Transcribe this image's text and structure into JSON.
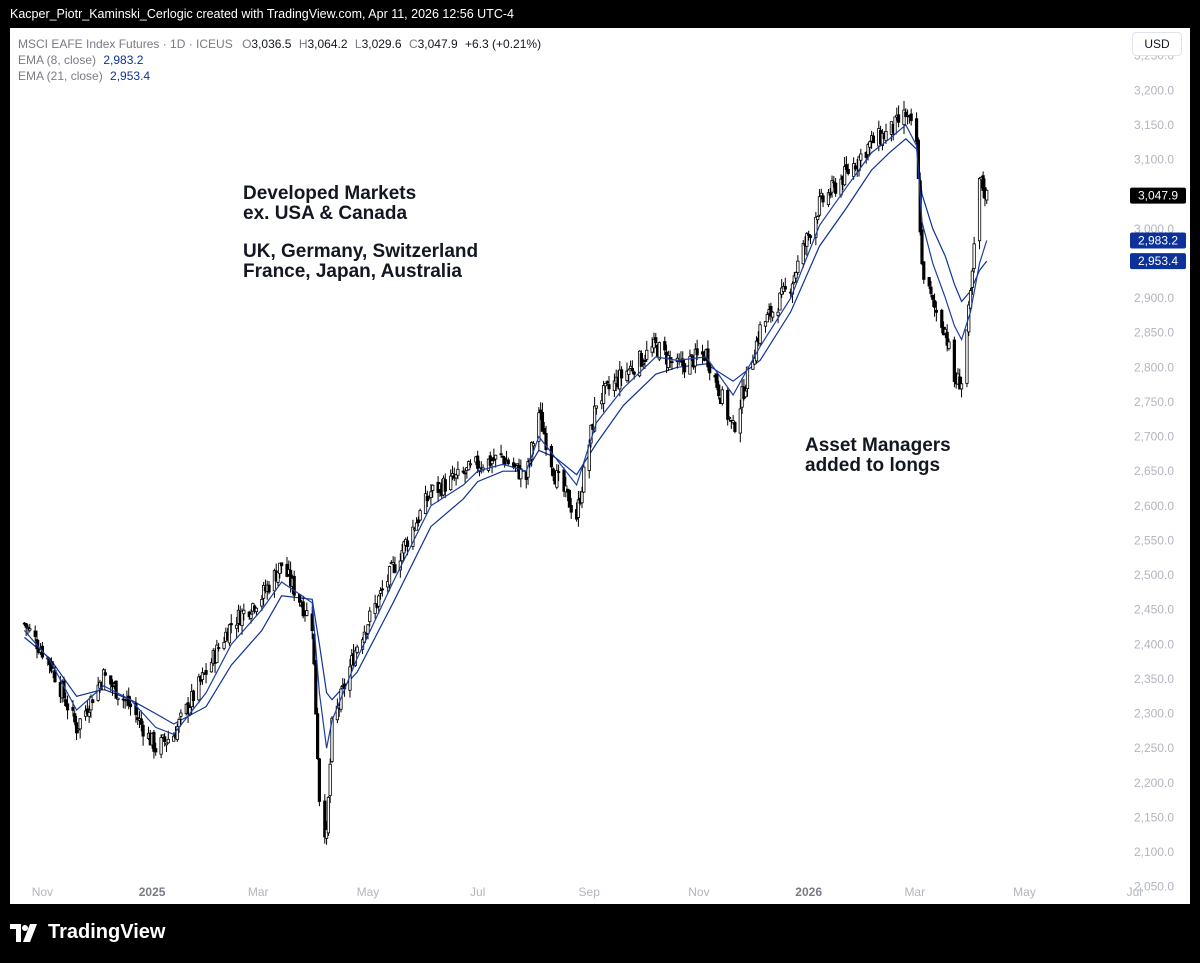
{
  "header": {
    "credit": "Kacper_Piotr_Kaminski_Cerlogic created with TradingView.com, Apr 11, 2026 12:56 UTC-4"
  },
  "legend": {
    "symbol": "MSCI EAFE Index Futures · 1D · ICEUS",
    "o_label": "O",
    "o_value": "3,036.5",
    "h_label": "H",
    "h_value": "3,064.2",
    "l_label": "L",
    "l_value": "3,029.6",
    "c_label": "C",
    "c_value": "3,047.9",
    "change": "+6.3 (+0.21%)",
    "ema8_label": "EMA (8, close)",
    "ema8_value": "2,983.2",
    "ema21_label": "EMA (21, close)",
    "ema21_value": "2,953.4"
  },
  "currency": "USD",
  "annotations": {
    "markets_line1": "Developed Markets",
    "markets_line2": "ex. USA & Canada",
    "countries_line1": "UK, Germany, Switzerland",
    "countries_line2": "France, Japan, Australia",
    "managers_line1": "Asset Managers",
    "managers_line2": "added to longs"
  },
  "footer": {
    "brand": "TradingView"
  },
  "colors": {
    "candle": "#000000",
    "ema8": "#1c3ea1",
    "ema21": "#0c3299",
    "last_price_bg": "#000000",
    "ema_label_bg": "#0c3299",
    "background": "#ffffff"
  },
  "chart_data": {
    "type": "line",
    "title": "MSCI EAFE Index Futures · 1D · ICEUS",
    "x_ticks": [
      "Nov",
      "2025",
      "Mar",
      "May",
      "Jul",
      "Sep",
      "Nov",
      "2026",
      "Mar",
      "May",
      "Jul"
    ],
    "y_ticks": [
      "3,250.0",
      "3,200.0",
      "3,150.0",
      "3,100.0",
      "3,050.0",
      "3,000.0",
      "2,950.0",
      "2,900.0",
      "2,850.0",
      "2,800.0",
      "2,750.0",
      "2,700.0",
      "2,650.0",
      "2,600.0",
      "2,550.0",
      "2,500.0",
      "2,450.0",
      "2,400.0",
      "2,350.0",
      "2,300.0",
      "2,250.0",
      "2,200.0",
      "2,150.0",
      "2,100.0",
      "2,050.0"
    ],
    "ylim": [
      2025,
      3290
    ],
    "price_labels": {
      "last": "3,047.9",
      "ema8": "2,983.2",
      "ema21": "2,953.4"
    },
    "x": [
      "2024-10-22",
      "2024-11-05",
      "2024-11-20",
      "2024-12-05",
      "2024-12-20",
      "2025-01-03",
      "2025-01-13",
      "2025-01-31",
      "2025-02-14",
      "2025-03-03",
      "2025-03-14",
      "2025-03-31",
      "2025-04-04",
      "2025-04-08",
      "2025-04-11",
      "2025-04-25",
      "2025-05-15",
      "2025-06-05",
      "2025-06-23",
      "2025-07-01",
      "2025-07-15",
      "2025-07-28",
      "2025-08-04",
      "2025-08-13",
      "2025-08-25",
      "2025-09-05",
      "2025-09-20",
      "2025-10-08",
      "2025-10-20",
      "2025-11-05",
      "2025-11-20",
      "2025-12-05",
      "2025-12-22",
      "2026-01-07",
      "2026-01-22",
      "2026-02-05",
      "2026-02-15",
      "2026-02-24",
      "2026-03-02",
      "2026-03-05",
      "2026-03-11",
      "2026-03-18",
      "2026-03-23",
      "2026-03-27",
      "2026-04-01",
      "2026-04-06",
      "2026-04-10"
    ],
    "series": [
      {
        "name": "MSCI EAFE Index Futures",
        "values": [
          2430,
          2375,
          2280,
          2355,
          2310,
          2250,
          2270,
          2360,
          2430,
          2470,
          2515,
          2430,
          2180,
          2120,
          2280,
          2400,
          2510,
          2620,
          2645,
          2660,
          2670,
          2640,
          2735,
          2645,
          2585,
          2750,
          2790,
          2830,
          2800,
          2820,
          2710,
          2855,
          2920,
          3035,
          3080,
          3125,
          3140,
          3165,
          3125,
          2945,
          2890,
          2855,
          2780,
          2780,
          2900,
          3070,
          3047.9
        ]
      },
      {
        "name": "EMA (8, close)",
        "values": [
          2420,
          2378,
          2305,
          2340,
          2320,
          2280,
          2270,
          2330,
          2400,
          2450,
          2490,
          2460,
          2330,
          2250,
          2290,
          2380,
          2490,
          2600,
          2630,
          2650,
          2660,
          2650,
          2700,
          2670,
          2630,
          2720,
          2770,
          2815,
          2810,
          2815,
          2760,
          2830,
          2900,
          3005,
          3060,
          3110,
          3130,
          3150,
          3120,
          3010,
          2950,
          2900,
          2860,
          2840,
          2880,
          2950,
          2983.2
        ]
      },
      {
        "name": "EMA (21, close)",
        "values": [
          2410,
          2380,
          2325,
          2335,
          2320,
          2300,
          2285,
          2310,
          2370,
          2420,
          2470,
          2465,
          2400,
          2330,
          2320,
          2360,
          2460,
          2570,
          2610,
          2635,
          2650,
          2650,
          2680,
          2670,
          2645,
          2690,
          2745,
          2790,
          2800,
          2805,
          2780,
          2810,
          2880,
          2975,
          3030,
          3085,
          3110,
          3130,
          3115,
          3050,
          3000,
          2960,
          2920,
          2895,
          2910,
          2940,
          2953.4
        ]
      }
    ]
  }
}
